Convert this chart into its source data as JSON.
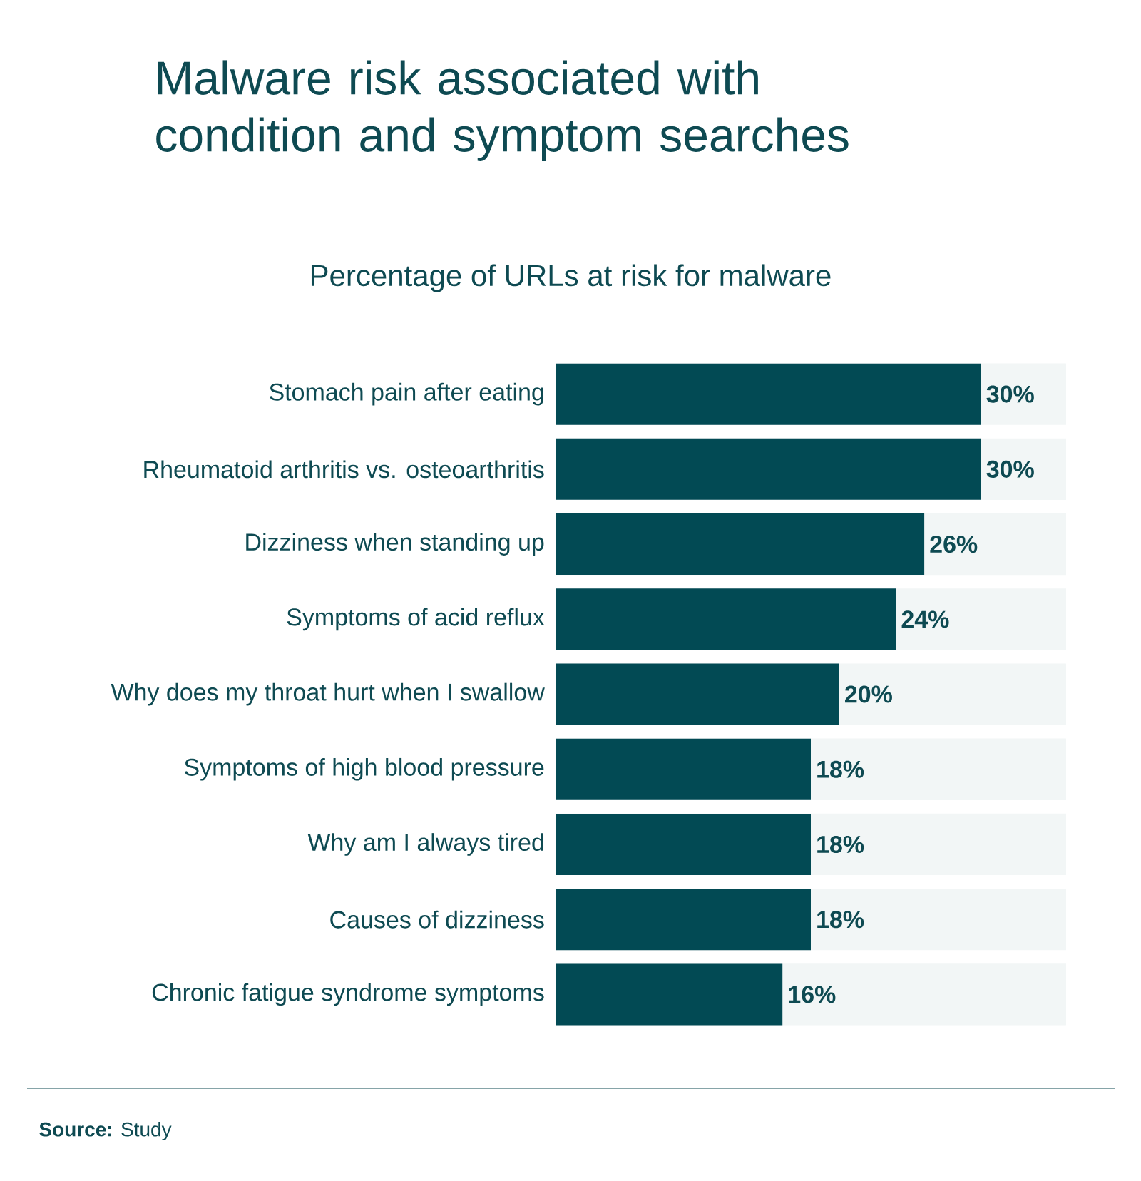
{
  "chart_data": {
    "type": "bar",
    "orientation": "horizontal",
    "title": "Malware risk associated with condition and symptom searches",
    "subtitle": "Percentage of URLs at risk for malware",
    "categories": [
      "Stomach pain after eating",
      "Rheumatoid arthritis vs. osteoarthritis",
      "Dizziness when standing up",
      "Symptoms of acid reflux",
      "Why does my throat hurt when I swallow",
      "Symptoms of high blood pressure",
      "Why am I always tired",
      "Causes of dizziness",
      "Chronic fatigue syndrome symptoms"
    ],
    "values": [
      30,
      30,
      26,
      24,
      20,
      18,
      18,
      18,
      16
    ],
    "value_labels": [
      "30%",
      "30%",
      "26%",
      "24%",
      "20%",
      "18%",
      "18%",
      "18%",
      "16%"
    ],
    "color": "#024a54",
    "xlim": [
      0,
      36
    ],
    "tick_labels": "y",
    "annotations": [
      "**Source:** Study"
    ]
  }
}
